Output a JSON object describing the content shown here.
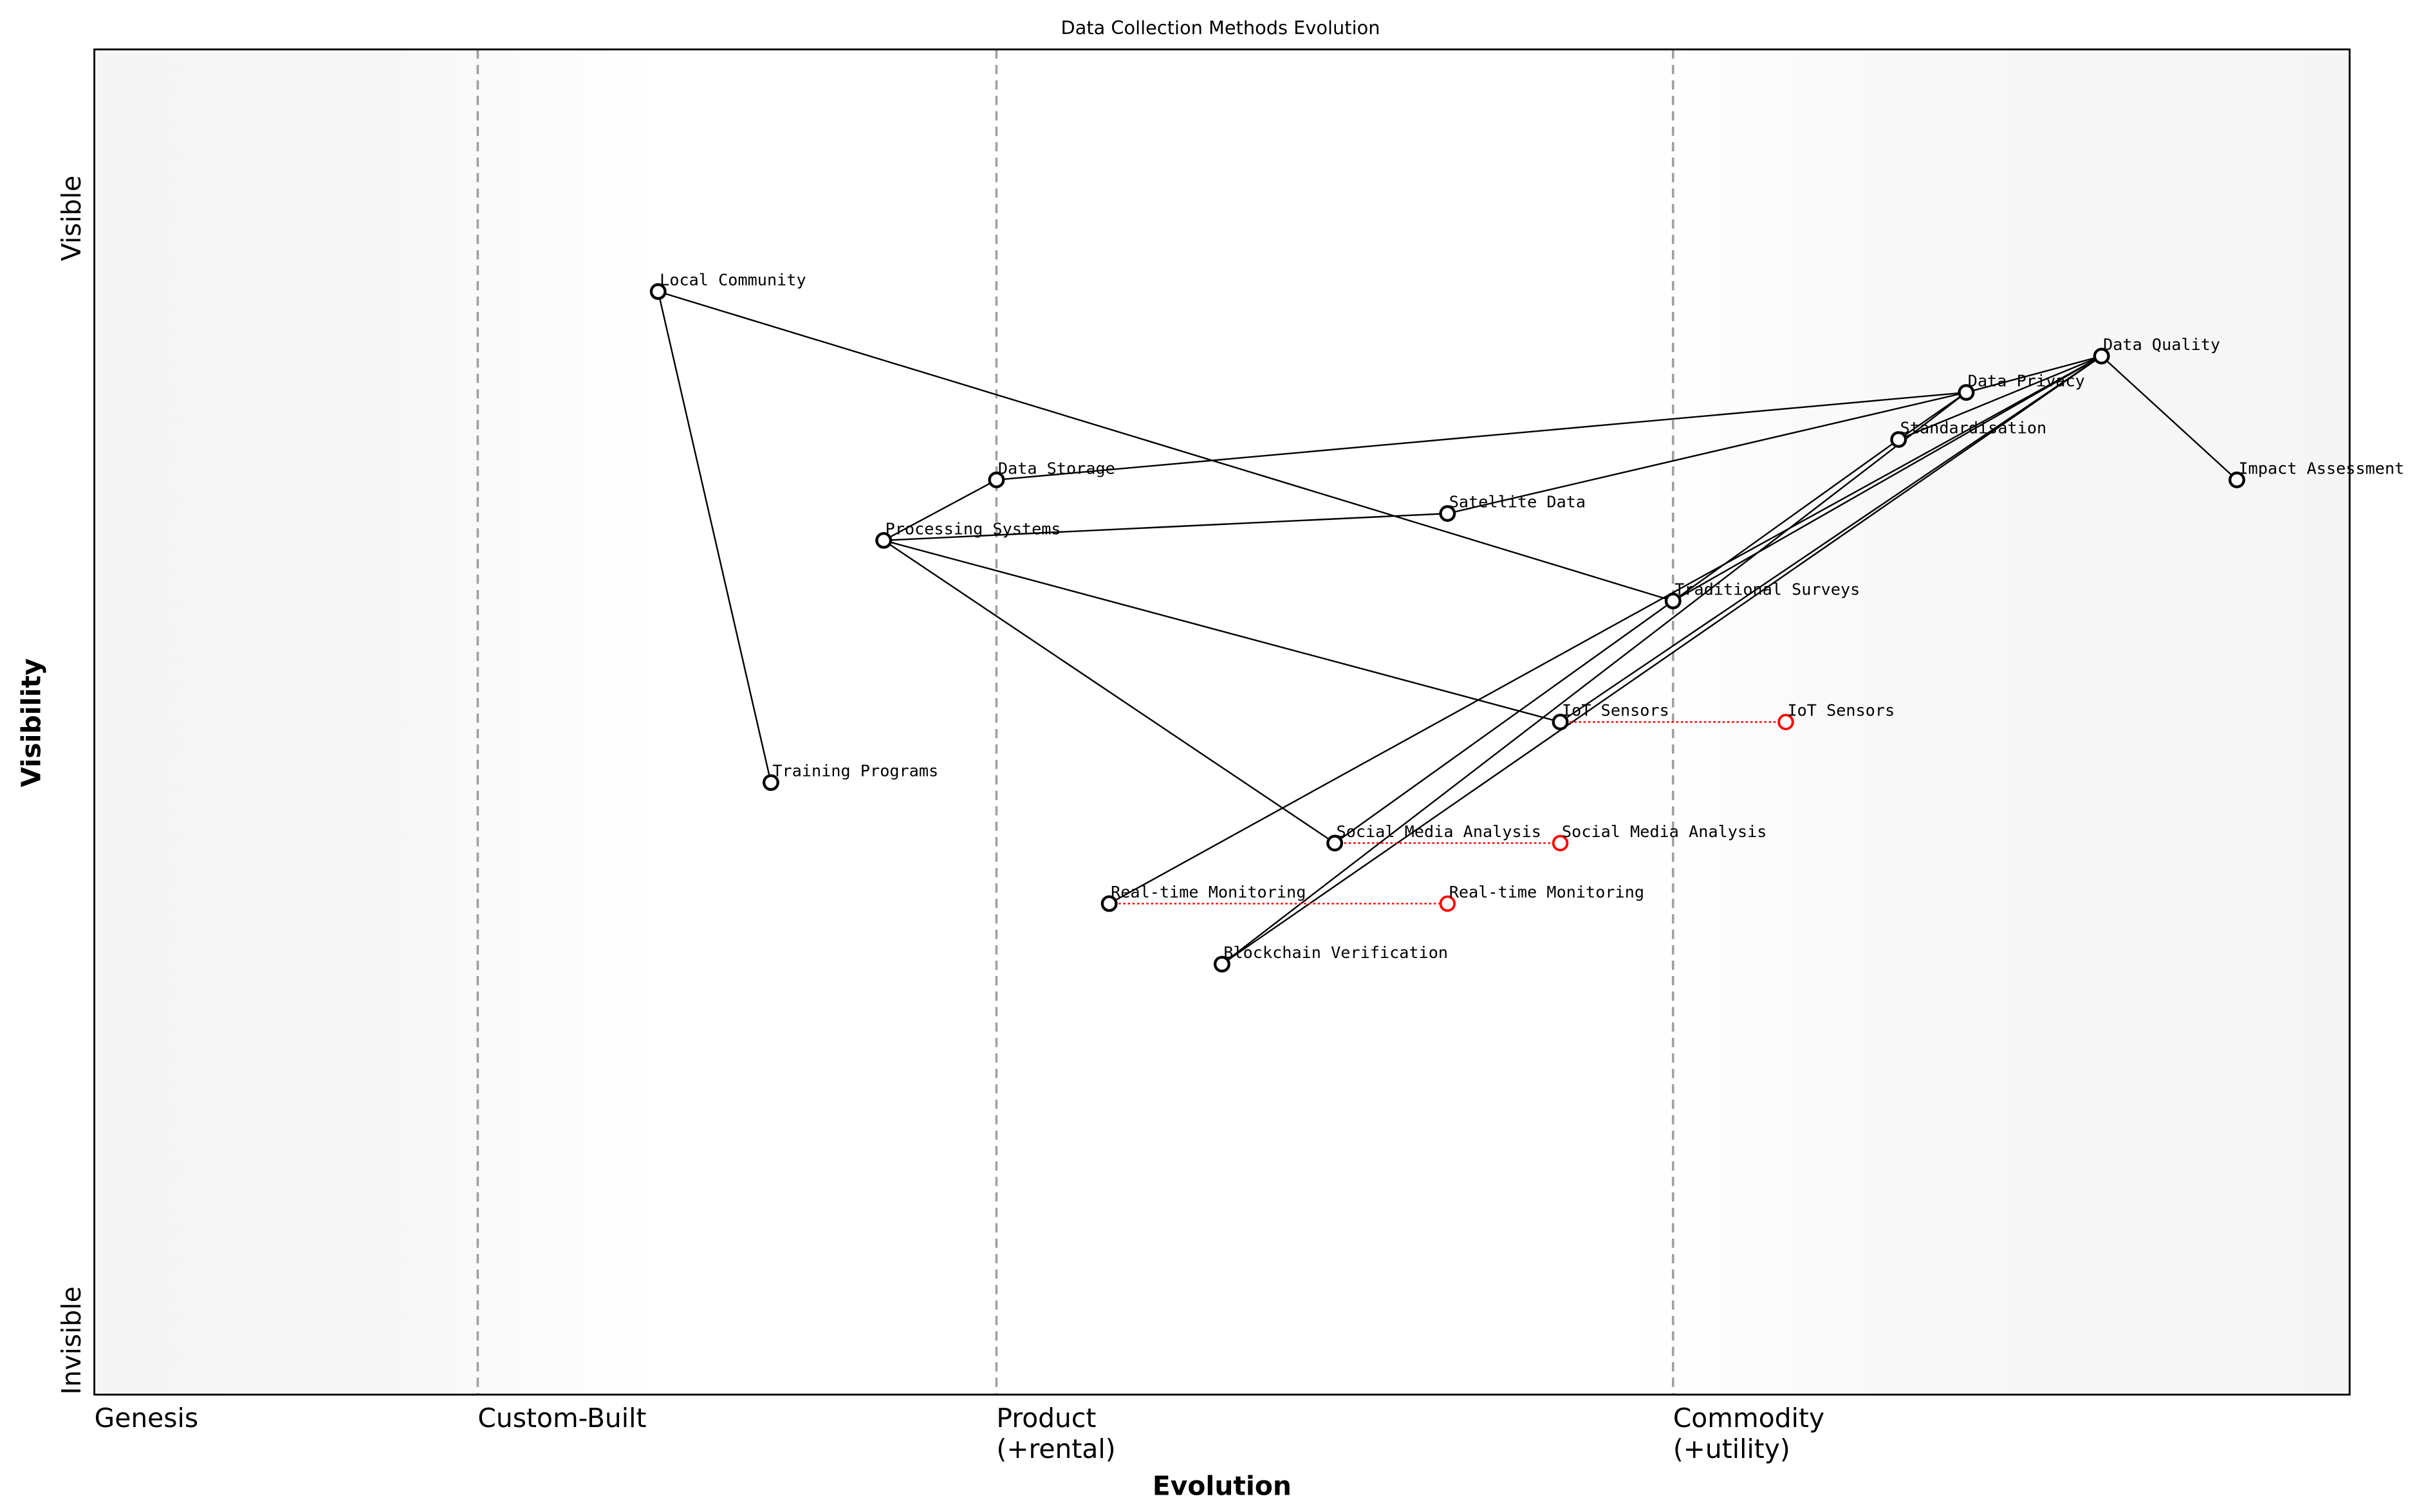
{
  "chart_data": {
    "type": "scatter",
    "title": "Data Collection Methods Evolution",
    "xlabel": "Evolution",
    "ylabel": "Visibility",
    "xlim": [
      0,
      1
    ],
    "ylim": [
      0,
      1
    ],
    "grid": false,
    "x_stages": [
      {
        "label": "Genesis",
        "x": 0.0
      },
      {
        "label": "Custom-Built",
        "x": 0.17
      },
      {
        "label": "Product\n(+rental)",
        "x": 0.4
      },
      {
        "label": "Commodity\n(+utility)",
        "x": 0.7
      }
    ],
    "y_ticks": [
      {
        "label": "Invisible",
        "y": 0.0
      },
      {
        "label": "Visible",
        "y": 0.9
      }
    ],
    "components": [
      {
        "name": "Local Community",
        "x": 0.25,
        "y": 0.82
      },
      {
        "name": "Training Programs",
        "x": 0.3,
        "y": 0.455
      },
      {
        "name": "Processing Systems",
        "x": 0.35,
        "y": 0.635
      },
      {
        "name": "Data Storage",
        "x": 0.4,
        "y": 0.68
      },
      {
        "name": "Satellite Data",
        "x": 0.6,
        "y": 0.655
      },
      {
        "name": "Traditional Surveys",
        "x": 0.7,
        "y": 0.59
      },
      {
        "name": "IoT Sensors",
        "x": 0.65,
        "y": 0.5
      },
      {
        "name": "Social Media Analysis",
        "x": 0.55,
        "y": 0.41
      },
      {
        "name": "Real-time Monitoring",
        "x": 0.45,
        "y": 0.365
      },
      {
        "name": "Blockchain Verification",
        "x": 0.5,
        "y": 0.32
      },
      {
        "name": "Standardisation",
        "x": 0.8,
        "y": 0.71
      },
      {
        "name": "Data Privacy",
        "x": 0.83,
        "y": 0.745
      },
      {
        "name": "Data Quality",
        "x": 0.89,
        "y": 0.772
      },
      {
        "name": "Impact Assessment",
        "x": 0.95,
        "y": 0.68
      }
    ],
    "evolved": [
      {
        "name": "IoT Sensors",
        "from_x": 0.65,
        "x": 0.75,
        "y": 0.5
      },
      {
        "name": "Social Media Analysis",
        "from_x": 0.55,
        "x": 0.65,
        "y": 0.41
      },
      {
        "name": "Real-time Monitoring",
        "from_x": 0.45,
        "x": 0.6,
        "y": 0.365
      }
    ],
    "links": [
      [
        "Local Community",
        "Training Programs"
      ],
      [
        "Local Community",
        "Traditional Surveys"
      ],
      [
        "Processing Systems",
        "Data Storage"
      ],
      [
        "Processing Systems",
        "Satellite Data"
      ],
      [
        "Processing Systems",
        "IoT Sensors"
      ],
      [
        "Processing Systems",
        "Social Media Analysis"
      ],
      [
        "Data Storage",
        "Data Privacy"
      ],
      [
        "Satellite Data",
        "Data Privacy"
      ],
      [
        "Standardisation",
        "Data Privacy"
      ],
      [
        "Standardisation",
        "Data Quality"
      ],
      [
        "Standardisation",
        "Social Media Analysis"
      ],
      [
        "Data Privacy",
        "Data Quality"
      ],
      [
        "Data Quality",
        "Impact Assessment"
      ],
      [
        "Data Quality",
        "Traditional Surveys"
      ],
      [
        "Data Quality",
        "Real-time Monitoring"
      ],
      [
        "Data Quality",
        "IoT Sensors"
      ],
      [
        "Data Quality",
        "Blockchain Verification"
      ],
      [
        "Data Privacy",
        "Blockchain Verification"
      ]
    ],
    "colors": {
      "component": "#000000",
      "evolved": "#ff0000",
      "stage_line": "#a0a0a0",
      "edge_band": "#f5f5f5"
    }
  }
}
